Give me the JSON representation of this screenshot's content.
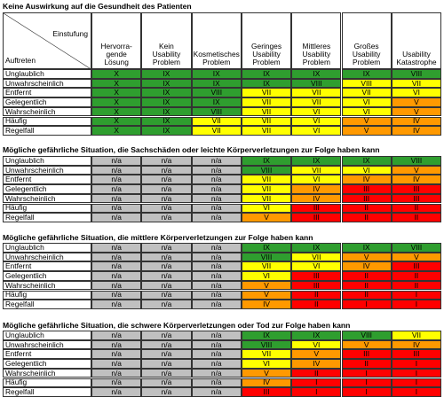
{
  "header": {
    "corner_top": "Einstufung",
    "corner_bottom": "Auftreten",
    "columns": [
      "Hervorra-\ngende\nLösung",
      "Kein\nUsability\nProblem",
      "Kosmetisches\nProblem",
      "Geringes\nUsability\nProblem",
      "Mittleres\nUsability\nProblem",
      "Großes\nUsability\nProblem",
      "Usability\nKatastrophe"
    ]
  },
  "sections": [
    {
      "title": "Keine Auswirkung auf die Gesundheit des Patienten",
      "rows": [
        {
          "label": "Unglaublich",
          "cells": [
            "X",
            "IX",
            "IX",
            "IX",
            "IX",
            "IX",
            "VIII"
          ],
          "colors": [
            "#2f9e2f",
            "#2f9e2f",
            "#2f9e2f",
            "#2f9e2f",
            "#2f9e2f",
            "#2f9e2f",
            "#2f9e2f"
          ]
        },
        {
          "label": "Unwahrscheinlich",
          "cells": [
            "X",
            "IX",
            "IX",
            "IX",
            "VIII",
            "VIII",
            "VII"
          ],
          "colors": [
            "#2f9e2f",
            "#2f9e2f",
            "#2f9e2f",
            "#2f9e2f",
            "#2f9e2f",
            "#ffff00",
            "#ffff00"
          ]
        },
        {
          "label": "Entfernt",
          "cells": [
            "X",
            "IX",
            "VIII",
            "VII",
            "VII",
            "VII",
            "VI"
          ],
          "colors": [
            "#2f9e2f",
            "#2f9e2f",
            "#2f9e2f",
            "#ffff00",
            "#ffff00",
            "#ffff00",
            "#ffff00"
          ]
        },
        {
          "label": "Gelegentlich",
          "cells": [
            "X",
            "IX",
            "IX",
            "VII",
            "VII",
            "VI",
            "V"
          ],
          "colors": [
            "#2f9e2f",
            "#2f9e2f",
            "#2f9e2f",
            "#ffff00",
            "#ffff00",
            "#ffff00",
            "#ff9900"
          ]
        },
        {
          "label": "Wahrscheinlich",
          "cells": [
            "X",
            "IX",
            "VIII",
            "VII",
            "VI",
            "VI",
            "V"
          ],
          "colors": [
            "#2f9e2f",
            "#2f9e2f",
            "#2f9e2f",
            "#ffff00",
            "#ffff00",
            "#ffff00",
            "#ff9900"
          ]
        },
        {
          "label": "Häufig",
          "cells": [
            "X",
            "IX",
            "VII",
            "VII",
            "VI",
            "V",
            "IV"
          ],
          "colors": [
            "#2f9e2f",
            "#2f9e2f",
            "#ffff00",
            "#ffff00",
            "#ffff00",
            "#ff9900",
            "#ff9900"
          ]
        },
        {
          "label": "Regelfall",
          "cells": [
            "X",
            "IX",
            "VII",
            "VII",
            "VI",
            "V",
            "IV"
          ],
          "colors": [
            "#2f9e2f",
            "#2f9e2f",
            "#ffff00",
            "#ffff00",
            "#ffff00",
            "#ff9900",
            "#ff9900"
          ]
        }
      ]
    },
    {
      "title": "Mögliche gefährliche Situation, die Sachschäden oder leichte Körperverletzungen zur Folge haben kann",
      "rows": [
        {
          "label": "Unglaublich",
          "cells": [
            "n/a",
            "n/a",
            "n/a",
            "IX",
            "IX",
            "IX",
            "VIII"
          ],
          "colors": [
            "#c0c0c0",
            "#c0c0c0",
            "#c0c0c0",
            "#2f9e2f",
            "#2f9e2f",
            "#2f9e2f",
            "#2f9e2f"
          ]
        },
        {
          "label": "Unwahrscheinlich",
          "cells": [
            "n/a",
            "n/a",
            "n/a",
            "VIII",
            "VII",
            "VI",
            "V"
          ],
          "colors": [
            "#c0c0c0",
            "#c0c0c0",
            "#c0c0c0",
            "#2f9e2f",
            "#ffff00",
            "#ffff00",
            "#ff9900"
          ]
        },
        {
          "label": "Entfernt",
          "cells": [
            "n/a",
            "n/a",
            "n/a",
            "VII",
            "VI",
            "IV",
            "IV"
          ],
          "colors": [
            "#c0c0c0",
            "#c0c0c0",
            "#c0c0c0",
            "#ffff00",
            "#ffff00",
            "#ff9900",
            "#ff9900"
          ]
        },
        {
          "label": "Gelegentlich",
          "cells": [
            "n/a",
            "n/a",
            "n/a",
            "VII",
            "IV",
            "III",
            "III"
          ],
          "colors": [
            "#c0c0c0",
            "#c0c0c0",
            "#c0c0c0",
            "#ffff00",
            "#ff9900",
            "#ff0000",
            "#ff0000"
          ]
        },
        {
          "label": "Wahrscheinlich",
          "cells": [
            "n/a",
            "n/a",
            "n/a",
            "VII",
            "IV",
            "III",
            "III"
          ],
          "colors": [
            "#c0c0c0",
            "#c0c0c0",
            "#c0c0c0",
            "#ffff00",
            "#ff9900",
            "#ff0000",
            "#ff0000"
          ]
        },
        {
          "label": "Häufig",
          "cells": [
            "n/a",
            "n/a",
            "n/a",
            "VI",
            "III",
            "II",
            "II"
          ],
          "colors": [
            "#c0c0c0",
            "#c0c0c0",
            "#c0c0c0",
            "#ffff00",
            "#ff0000",
            "#ff0000",
            "#ff0000"
          ]
        },
        {
          "label": "Regelfall",
          "cells": [
            "n/a",
            "n/a",
            "n/a",
            "V",
            "III",
            "II",
            "II"
          ],
          "colors": [
            "#c0c0c0",
            "#c0c0c0",
            "#c0c0c0",
            "#ff9900",
            "#ff0000",
            "#ff0000",
            "#ff0000"
          ]
        }
      ]
    },
    {
      "title": "Mögliche gefährliche Situation, die mittlere Körperverletzungen zur Folge haben kann",
      "rows": [
        {
          "label": "Unglaublich",
          "cells": [
            "n/a",
            "n/a",
            "n/a",
            "IX",
            "IX",
            "IX",
            "VIII"
          ],
          "colors": [
            "#c0c0c0",
            "#c0c0c0",
            "#c0c0c0",
            "#2f9e2f",
            "#2f9e2f",
            "#2f9e2f",
            "#2f9e2f"
          ]
        },
        {
          "label": "Unwahrscheinlich",
          "cells": [
            "n/a",
            "n/a",
            "n/a",
            "VIII",
            "VII",
            "V",
            "V"
          ],
          "colors": [
            "#c0c0c0",
            "#c0c0c0",
            "#c0c0c0",
            "#2f9e2f",
            "#ffff00",
            "#ff9900",
            "#ff9900"
          ]
        },
        {
          "label": "Entfernt",
          "cells": [
            "n/a",
            "n/a",
            "n/a",
            "VII",
            "VI",
            "IV",
            "III"
          ],
          "colors": [
            "#c0c0c0",
            "#c0c0c0",
            "#c0c0c0",
            "#ffff00",
            "#ffff00",
            "#ff9900",
            "#ff0000"
          ]
        },
        {
          "label": "Gelegentlich",
          "cells": [
            "n/a",
            "n/a",
            "n/a",
            "VI",
            "III",
            "II",
            "II"
          ],
          "colors": [
            "#c0c0c0",
            "#c0c0c0",
            "#c0c0c0",
            "#ffff00",
            "#ff0000",
            "#ff0000",
            "#ff0000"
          ]
        },
        {
          "label": "Wahrscheinlich",
          "cells": [
            "n/a",
            "n/a",
            "n/a",
            "V",
            "III",
            "II",
            "II"
          ],
          "colors": [
            "#c0c0c0",
            "#c0c0c0",
            "#c0c0c0",
            "#ff9900",
            "#ff0000",
            "#ff0000",
            "#ff0000"
          ]
        },
        {
          "label": "Häufig",
          "cells": [
            "n/a",
            "n/a",
            "n/a",
            "V",
            "II",
            "II",
            "I"
          ],
          "colors": [
            "#c0c0c0",
            "#c0c0c0",
            "#c0c0c0",
            "#ff9900",
            "#ff0000",
            "#ff0000",
            "#ff0000"
          ]
        },
        {
          "label": "Regelfall",
          "cells": [
            "n/a",
            "n/a",
            "n/a",
            "IV",
            "II",
            "I",
            "I"
          ],
          "colors": [
            "#c0c0c0",
            "#c0c0c0",
            "#c0c0c0",
            "#ff9900",
            "#ff0000",
            "#ff0000",
            "#ff0000"
          ]
        }
      ]
    },
    {
      "title": "Mögliche gefährliche Situation, die schwere Körperverletzungen oder Tod zur Folge haben kann",
      "rows": [
        {
          "label": "Unglaublich",
          "cells": [
            "n/a",
            "n/a",
            "n/a",
            "IX",
            "IX",
            "VIII",
            "VII"
          ],
          "colors": [
            "#c0c0c0",
            "#c0c0c0",
            "#c0c0c0",
            "#2f9e2f",
            "#2f9e2f",
            "#2f9e2f",
            "#ffff00"
          ]
        },
        {
          "label": "Unwahrscheinlich",
          "cells": [
            "n/a",
            "n/a",
            "n/a",
            "VIII",
            "VI",
            "V",
            "IV"
          ],
          "colors": [
            "#c0c0c0",
            "#c0c0c0",
            "#c0c0c0",
            "#2f9e2f",
            "#ffff00",
            "#ff9900",
            "#ff9900"
          ]
        },
        {
          "label": "Entfernt",
          "cells": [
            "n/a",
            "n/a",
            "n/a",
            "VII",
            "V",
            "III",
            "III"
          ],
          "colors": [
            "#c0c0c0",
            "#c0c0c0",
            "#c0c0c0",
            "#ffff00",
            "#ff9900",
            "#ff0000",
            "#ff0000"
          ]
        },
        {
          "label": "Gelegentlich",
          "cells": [
            "n/a",
            "n/a",
            "n/a",
            "VI",
            "IV",
            "II",
            "I"
          ],
          "colors": [
            "#c0c0c0",
            "#c0c0c0",
            "#c0c0c0",
            "#ffff00",
            "#ff9900",
            "#ff0000",
            "#ff0000"
          ]
        },
        {
          "label": "Wahrscheinlich",
          "cells": [
            "n/a",
            "n/a",
            "n/a",
            "V",
            "II",
            "I",
            "I"
          ],
          "colors": [
            "#c0c0c0",
            "#c0c0c0",
            "#c0c0c0",
            "#ff9900",
            "#ff0000",
            "#ff0000",
            "#ff0000"
          ]
        },
        {
          "label": "Häufig",
          "cells": [
            "n/a",
            "n/a",
            "n/a",
            "IV",
            "I",
            "I",
            "I"
          ],
          "colors": [
            "#c0c0c0",
            "#c0c0c0",
            "#c0c0c0",
            "#ff9900",
            "#ff0000",
            "#ff0000",
            "#ff0000"
          ]
        },
        {
          "label": "Regelfall",
          "cells": [
            "n/a",
            "n/a",
            "n/a",
            "III",
            "I",
            "I",
            "I"
          ],
          "colors": [
            "#c0c0c0",
            "#c0c0c0",
            "#c0c0c0",
            "#ff0000",
            "#ff0000",
            "#ff0000",
            "#ff0000"
          ]
        }
      ]
    }
  ]
}
